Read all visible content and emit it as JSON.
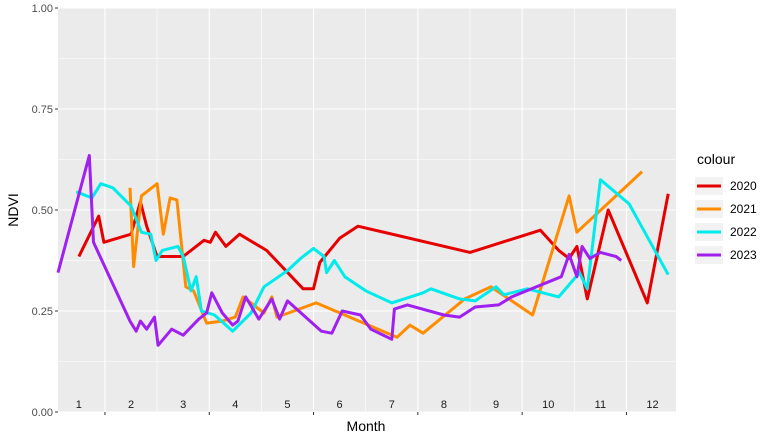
{
  "chart_data": {
    "type": "line",
    "title": "",
    "xlabel": "Month",
    "ylabel": "NDVI",
    "xlim": [
      0.6,
      12.45
    ],
    "ylim": [
      0,
      1
    ],
    "y_ticks": [
      "0.00",
      "0.25",
      "0.50",
      "0.75",
      "1.00"
    ],
    "y_tick_values": [
      0,
      0.25,
      0.5,
      0.75,
      1
    ],
    "month_labels": [
      "1",
      "2",
      "3",
      "4",
      "5",
      "6",
      "7",
      "8",
      "9",
      "10",
      "11",
      "12"
    ],
    "grid": true,
    "legend": {
      "title": "colour",
      "position": "right"
    },
    "series": [
      {
        "name": "2020",
        "color": "#e60000",
        "points": [
          [
            1.0,
            0.385
          ],
          [
            1.38,
            0.485
          ],
          [
            1.48,
            0.42
          ],
          [
            2.0,
            0.44
          ],
          [
            2.18,
            0.52
          ],
          [
            2.3,
            0.46
          ],
          [
            2.5,
            0.385
          ],
          [
            3.0,
            0.385
          ],
          [
            3.4,
            0.425
          ],
          [
            3.52,
            0.42
          ],
          [
            3.62,
            0.445
          ],
          [
            3.82,
            0.41
          ],
          [
            4.08,
            0.44
          ],
          [
            4.6,
            0.4
          ],
          [
            5.3,
            0.305
          ],
          [
            5.5,
            0.305
          ],
          [
            5.62,
            0.37
          ],
          [
            6.0,
            0.43
          ],
          [
            6.35,
            0.46
          ],
          [
            8.5,
            0.395
          ],
          [
            9.85,
            0.45
          ],
          [
            10.2,
            0.4
          ],
          [
            10.4,
            0.38
          ],
          [
            10.55,
            0.41
          ],
          [
            10.75,
            0.28
          ],
          [
            11.15,
            0.5
          ],
          [
            11.9,
            0.27
          ],
          [
            12.3,
            0.54
          ]
        ]
      },
      {
        "name": "2021",
        "color": "#ff8c00",
        "points": [
          [
            1.98,
            0.555
          ],
          [
            2.05,
            0.36
          ],
          [
            2.2,
            0.535
          ],
          [
            2.5,
            0.565
          ],
          [
            2.62,
            0.44
          ],
          [
            2.75,
            0.53
          ],
          [
            2.88,
            0.525
          ],
          [
            3.05,
            0.31
          ],
          [
            3.2,
            0.3
          ],
          [
            3.45,
            0.22
          ],
          [
            3.75,
            0.225
          ],
          [
            4.0,
            0.235
          ],
          [
            4.15,
            0.285
          ],
          [
            4.55,
            0.245
          ],
          [
            4.7,
            0.285
          ],
          [
            4.8,
            0.235
          ],
          [
            5.55,
            0.27
          ],
          [
            7.1,
            0.185
          ],
          [
            7.35,
            0.215
          ],
          [
            7.6,
            0.195
          ],
          [
            8.4,
            0.28
          ],
          [
            8.9,
            0.31
          ],
          [
            9.7,
            0.24
          ],
          [
            10.4,
            0.535
          ],
          [
            10.55,
            0.445
          ],
          [
            11.8,
            0.595
          ]
        ]
      },
      {
        "name": "2022",
        "color": "#00ebeb",
        "points": [
          [
            0.95,
            0.545
          ],
          [
            1.25,
            0.53
          ],
          [
            1.42,
            0.565
          ],
          [
            1.65,
            0.555
          ],
          [
            2.0,
            0.51
          ],
          [
            2.2,
            0.445
          ],
          [
            2.38,
            0.44
          ],
          [
            2.48,
            0.375
          ],
          [
            2.6,
            0.4
          ],
          [
            2.9,
            0.41
          ],
          [
            3.0,
            0.385
          ],
          [
            3.15,
            0.3
          ],
          [
            3.25,
            0.335
          ],
          [
            3.35,
            0.25
          ],
          [
            3.6,
            0.24
          ],
          [
            3.95,
            0.2
          ],
          [
            4.3,
            0.245
          ],
          [
            4.55,
            0.31
          ],
          [
            5.0,
            0.35
          ],
          [
            5.25,
            0.38
          ],
          [
            5.5,
            0.405
          ],
          [
            5.7,
            0.385
          ],
          [
            5.75,
            0.345
          ],
          [
            5.9,
            0.375
          ],
          [
            6.1,
            0.335
          ],
          [
            6.5,
            0.3
          ],
          [
            7.0,
            0.27
          ],
          [
            7.6,
            0.295
          ],
          [
            7.75,
            0.305
          ],
          [
            8.3,
            0.28
          ],
          [
            8.6,
            0.275
          ],
          [
            9.0,
            0.31
          ],
          [
            9.15,
            0.29
          ],
          [
            9.6,
            0.305
          ],
          [
            10.2,
            0.285
          ],
          [
            10.6,
            0.345
          ],
          [
            10.75,
            0.305
          ],
          [
            11.0,
            0.575
          ],
          [
            11.55,
            0.515
          ],
          [
            12.3,
            0.34
          ]
        ]
      },
      {
        "name": "2023",
        "color": "#a020f0",
        "points": [
          [
            0.6,
            0.345
          ],
          [
            1.2,
            0.635
          ],
          [
            1.28,
            0.42
          ],
          [
            1.98,
            0.225
          ],
          [
            2.1,
            0.2
          ],
          [
            2.18,
            0.225
          ],
          [
            2.3,
            0.205
          ],
          [
            2.45,
            0.235
          ],
          [
            2.52,
            0.165
          ],
          [
            2.78,
            0.205
          ],
          [
            3.0,
            0.19
          ],
          [
            3.3,
            0.23
          ],
          [
            3.45,
            0.245
          ],
          [
            3.55,
            0.295
          ],
          [
            3.75,
            0.245
          ],
          [
            3.95,
            0.215
          ],
          [
            4.05,
            0.225
          ],
          [
            4.2,
            0.285
          ],
          [
            4.45,
            0.23
          ],
          [
            4.7,
            0.28
          ],
          [
            4.85,
            0.23
          ],
          [
            5.0,
            0.275
          ],
          [
            5.65,
            0.2
          ],
          [
            5.85,
            0.195
          ],
          [
            6.05,
            0.25
          ],
          [
            6.4,
            0.24
          ],
          [
            6.6,
            0.205
          ],
          [
            7.0,
            0.18
          ],
          [
            7.05,
            0.255
          ],
          [
            7.3,
            0.265
          ],
          [
            8.0,
            0.24
          ],
          [
            8.3,
            0.235
          ],
          [
            8.6,
            0.26
          ],
          [
            9.05,
            0.265
          ],
          [
            9.3,
            0.285
          ],
          [
            10.25,
            0.335
          ],
          [
            10.4,
            0.39
          ],
          [
            10.55,
            0.335
          ],
          [
            10.65,
            0.41
          ],
          [
            10.8,
            0.38
          ],
          [
            11.0,
            0.395
          ],
          [
            11.3,
            0.385
          ],
          [
            11.4,
            0.375
          ]
        ]
      }
    ]
  }
}
